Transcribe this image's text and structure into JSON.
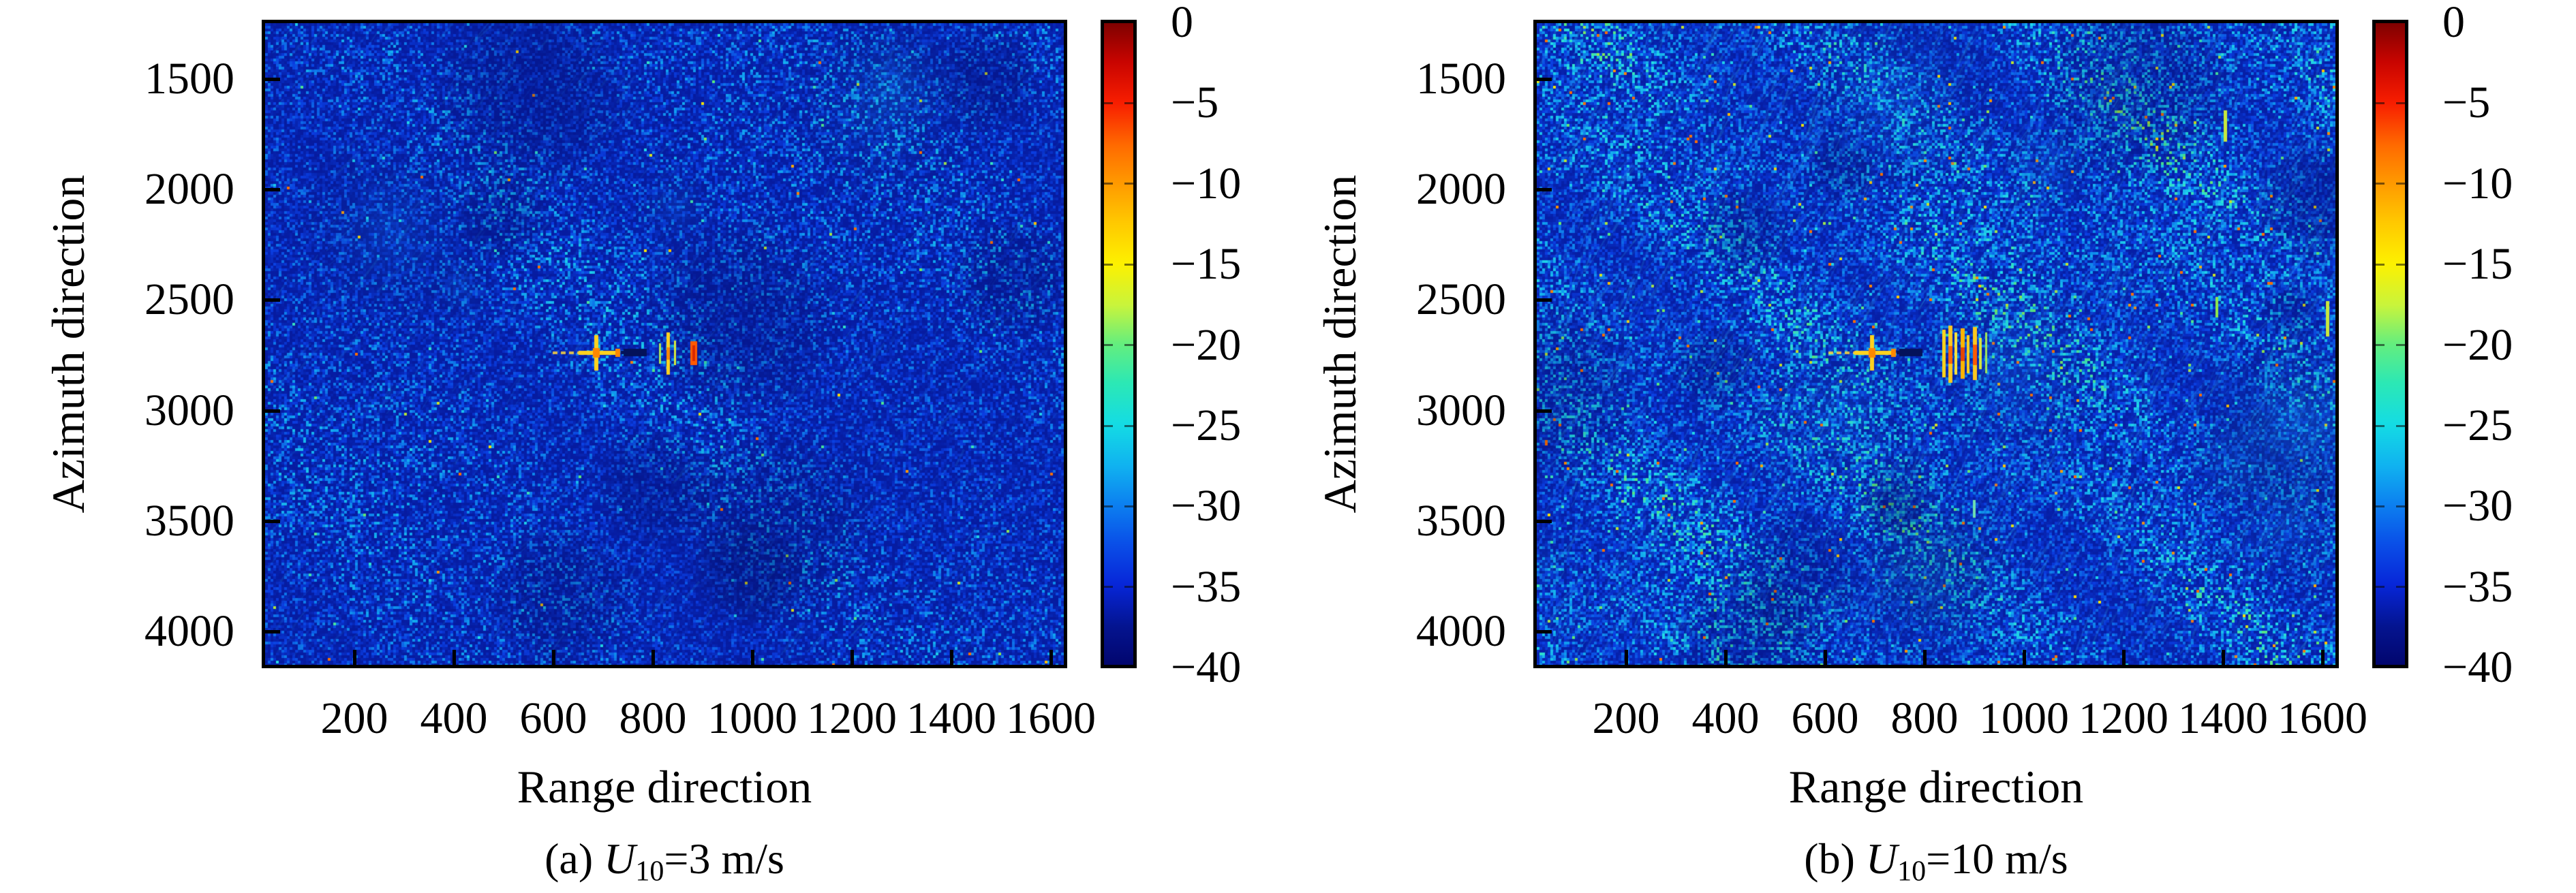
{
  "figure": {
    "background": "#ffffff",
    "colors": {
      "colormap": "jet",
      "colorbar_top": "#7f0100",
      "colorbar_bottom": "#02066e",
      "sea_base": "#0a2fc0",
      "axis": "#000000"
    },
    "panels": [
      {
        "id": "a",
        "ylabel": "Azimuth direction",
        "xlabel": "Range direction",
        "caption": {
          "pre": "(a) ",
          "var": "U",
          "sub": "10",
          "rest": "=3 m/s",
          "full": "(a) U10=3 m/s"
        },
        "x_tick_labels": [
          "200",
          "400",
          "600",
          "800",
          "1000",
          "1200",
          "1400",
          "1600"
        ],
        "y_tick_labels": [
          "1500",
          "2000",
          "2500",
          "3000",
          "3500",
          "4000"
        ],
        "colorbar_tick_labels": [
          "0",
          "−5",
          "−10",
          "−15",
          "−20",
          "−25",
          "−30",
          "−35",
          "−40"
        ]
      },
      {
        "id": "b",
        "ylabel": "Azimuth direction",
        "xlabel": "Range direction",
        "caption": {
          "pre": "(b) ",
          "var": "U",
          "sub": "10",
          "rest": "=10 m/s",
          "full": "(b) U10=10 m/s"
        },
        "x_tick_labels": [
          "200",
          "400",
          "600",
          "800",
          "1000",
          "1200",
          "1400",
          "1600"
        ],
        "y_tick_labels": [
          "1500",
          "2000",
          "2500",
          "3000",
          "3500",
          "4000"
        ],
        "colorbar_tick_labels": [
          "0",
          "−5",
          "−10",
          "−15",
          "−20",
          "−25",
          "−30",
          "−35",
          "−40"
        ]
      }
    ]
  },
  "chart_data": [
    {
      "type": "heatmap",
      "title": "(a) U10=3 m/s",
      "xlabel": "Range direction",
      "ylabel": "Azimuth direction",
      "x_ticks": [
        200,
        400,
        600,
        800,
        1000,
        1200,
        1400,
        1600
      ],
      "y_ticks": [
        1500,
        2000,
        2500,
        3000,
        3500,
        4000
      ],
      "y_axis_inverted": true,
      "grid": false,
      "colorbar": {
        "min": -40,
        "max": 0,
        "ticks": [
          0,
          -5,
          -10,
          -15,
          -20,
          -25,
          -30,
          -35,
          -40
        ],
        "colormap": "jet",
        "position": "right"
      },
      "content_summary": "Simulated SAR sea-surface speckle at wind speed U10=3 m/s; background clutter mostly −40 to −27 dB (dark blue to cyan), faint diagonal wave streaks, and a bright ship/point-target signature (up to ~0 dB, yellow-orange) with cross-shaped sidelobes and a dark azimuth smear near range ≈ 700–1030, azimuth ≈ 2740",
      "wind_speed": "U10 = 3 m/s"
    },
    {
      "type": "heatmap",
      "title": "(b) U10=10 m/s",
      "xlabel": "Range direction",
      "ylabel": "Azimuth direction",
      "x_ticks": [
        200,
        400,
        600,
        800,
        1000,
        1200,
        1400,
        1600
      ],
      "y_ticks": [
        1500,
        2000,
        2500,
        3000,
        3500,
        4000
      ],
      "y_axis_inverted": true,
      "grid": false,
      "colorbar": {
        "min": -40,
        "max": 0,
        "ticks": [
          0,
          -5,
          -10,
          -15,
          -20,
          -25,
          -30,
          -35,
          -40
        ],
        "colormap": "jet",
        "position": "right"
      },
      "content_summary": "Simulated SAR sea-surface speckle at wind speed U10=10 m/s; brighter, higher-contrast clutter (≈ −35 to −22 dB) with pronounced diagonal wind streaks, scattered yellow-green spikes, and a stronger ship/point-target signature with multiple yellow-orange sidelobe streaks near range ≈ 700–1060, azimuth ≈ 2740",
      "wind_speed": "U10 = 10 m/s"
    }
  ]
}
